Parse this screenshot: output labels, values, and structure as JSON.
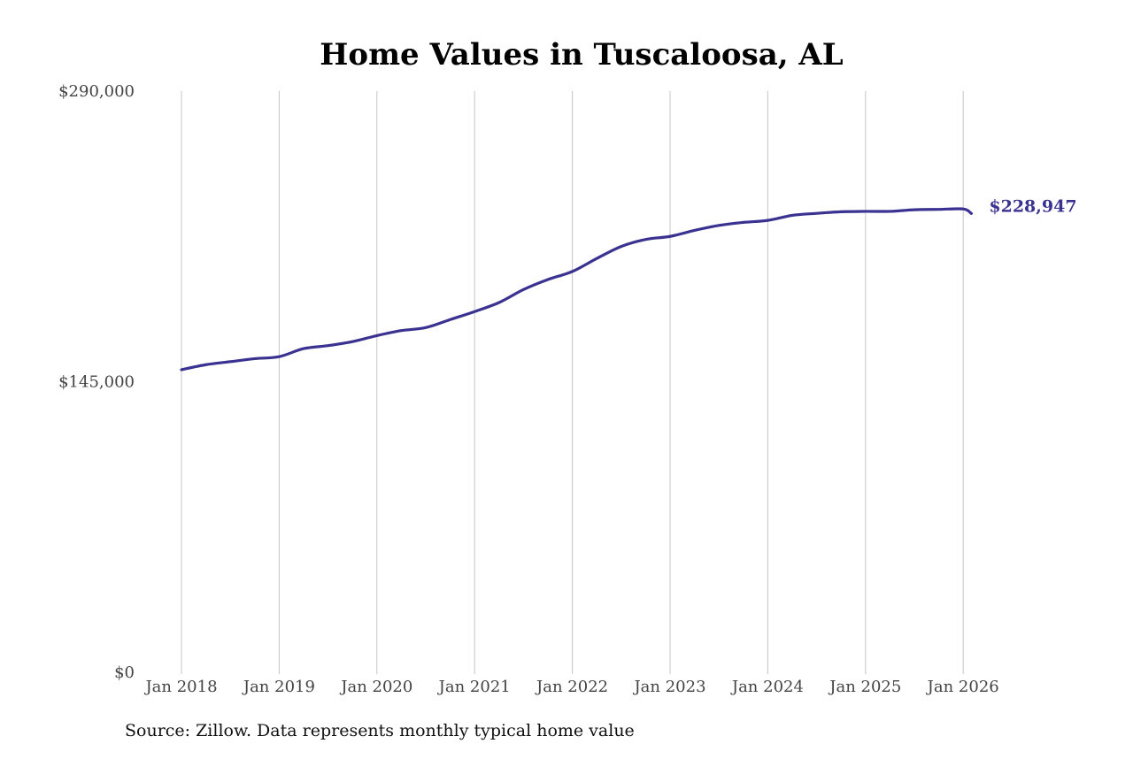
{
  "chart_data": {
    "type": "line",
    "title": "Home Values in Tuscaloosa, AL",
    "xlabel": "",
    "ylabel": "",
    "y_ticks": [
      {
        "value": 0,
        "label": "$0"
      },
      {
        "value": 145000,
        "label": "$145,000"
      },
      {
        "value": 290000,
        "label": "$290,000"
      }
    ],
    "ylim": [
      0,
      290000
    ],
    "x_ticks": [
      "Jan 2018",
      "Jan 2019",
      "Jan 2020",
      "Jan 2021",
      "Jan 2022",
      "Jan 2023",
      "Jan 2024",
      "Jan 2025",
      "Jan 2026"
    ],
    "xlim": [
      "2018-01",
      "2026-02"
    ],
    "grid": {
      "vertical": true,
      "horizontal": false
    },
    "series": [
      {
        "color": "#3a3290",
        "points": [
          [
            "2018-01",
            151000
          ],
          [
            "2018-04",
            153500
          ],
          [
            "2018-07",
            155000
          ],
          [
            "2018-10",
            156500
          ],
          [
            "2019-01",
            157500
          ],
          [
            "2019-04",
            161500
          ],
          [
            "2019-07",
            163000
          ],
          [
            "2019-10",
            165000
          ],
          [
            "2020-01",
            168000
          ],
          [
            "2020-04",
            170500
          ],
          [
            "2020-07",
            172000
          ],
          [
            "2020-10",
            176000
          ],
          [
            "2021-01",
            180000
          ],
          [
            "2021-04",
            184500
          ],
          [
            "2021-07",
            191000
          ],
          [
            "2021-10",
            196000
          ],
          [
            "2022-01",
            200000
          ],
          [
            "2022-04",
            206500
          ],
          [
            "2022-07",
            212500
          ],
          [
            "2022-10",
            216000
          ],
          [
            "2023-01",
            217500
          ],
          [
            "2023-04",
            220500
          ],
          [
            "2023-07",
            223000
          ],
          [
            "2023-10",
            224500
          ],
          [
            "2024-01",
            225500
          ],
          [
            "2024-04",
            228000
          ],
          [
            "2024-07",
            229000
          ],
          [
            "2024-10",
            229800
          ],
          [
            "2025-01",
            230000
          ],
          [
            "2025-04",
            230000
          ],
          [
            "2025-07",
            230800
          ],
          [
            "2025-10",
            231000
          ],
          [
            "2026-01",
            231200
          ],
          [
            "2026-02",
            228947
          ]
        ],
        "end_label": "$228,947"
      }
    ]
  },
  "footer": {
    "source": "Source: Zillow. Data represents monthly typical home value"
  }
}
